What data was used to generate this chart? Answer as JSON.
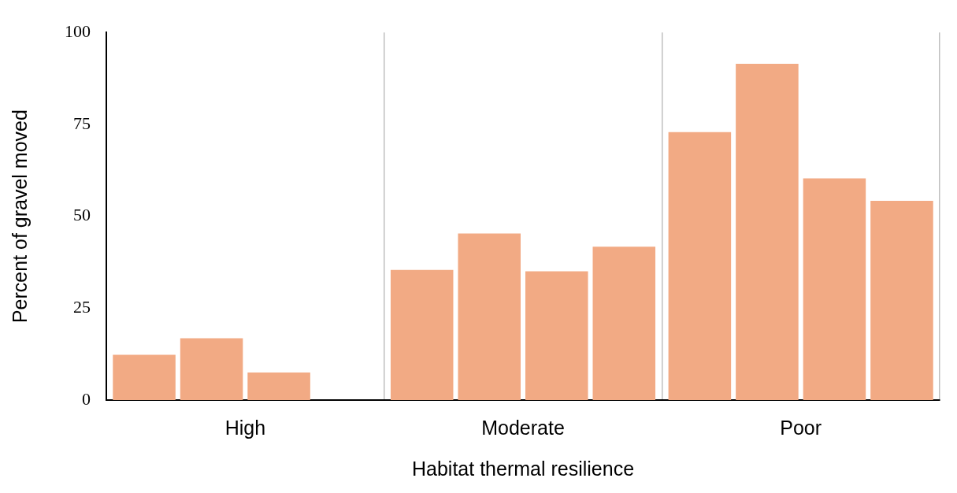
{
  "chart_data": {
    "type": "bar",
    "xlabel": "Habitat thermal resilience",
    "ylabel": "Percent of gravel moved",
    "categories": [
      "High",
      "Moderate",
      "Poor"
    ],
    "series": [
      {
        "color": "#f2aa84",
        "values": [
          12.3,
          35.4,
          72.9
        ]
      },
      {
        "color": "#f2aa84",
        "values": [
          16.8,
          45.3,
          91.5
        ]
      },
      {
        "color": "#f2aa84",
        "values": [
          7.5,
          35,
          60.3
        ]
      },
      {
        "color": "#f2aa84",
        "values": [
          null,
          41.7,
          54.2
        ]
      }
    ],
    "ylim": [
      0,
      100
    ],
    "yticks": [
      0,
      25,
      50,
      75,
      100
    ],
    "grid": "x",
    "legend": false
  }
}
